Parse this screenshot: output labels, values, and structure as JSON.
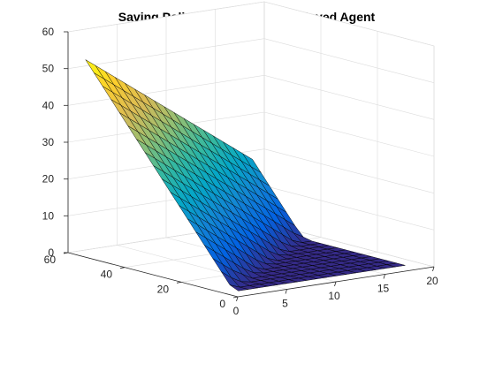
{
  "chart_data": {
    "type": "surface",
    "title": "Saving Policy Function for Employed Agent",
    "xlabel": "",
    "ylabel": "",
    "zlabel": "",
    "xlim": [
      0,
      20
    ],
    "ylim": [
      0,
      60
    ],
    "zlim": [
      0,
      60
    ],
    "x_ticks": [
      "0",
      "5",
      "10",
      "15",
      "20"
    ],
    "y_ticks": [
      "0",
      "20",
      "40",
      "60"
    ],
    "z_ticks": [
      "0",
      "10",
      "20",
      "30",
      "40",
      "50",
      "60"
    ],
    "grid": true,
    "colormap": "parula",
    "colormap_stops": [
      "#352a87",
      "#0363e1",
      "#1485d4",
      "#06a7c6",
      "#38b99e",
      "#92bf73",
      "#d9ba56",
      "#fcce2e",
      "#f9fb0e"
    ],
    "x_grid": [
      1.5,
      2.5,
      3.5,
      4.5,
      5.5,
      6.5,
      7.5,
      8.5,
      9.5,
      10.5,
      11.5,
      12.5,
      13.5,
      14.5,
      15.5,
      16.5,
      17.5,
      18.5
    ],
    "y_grid": [
      5,
      8,
      11,
      14,
      17,
      20,
      23,
      26,
      29,
      32,
      35,
      38,
      41,
      44,
      47,
      50,
      53,
      56,
      59
    ],
    "saving_z": [
      [
        0.0,
        0.0,
        0.0,
        0.0,
        0.0,
        0.0,
        0.0,
        0.0,
        0.0,
        0.0,
        0.0,
        0.0,
        0.0,
        0.0,
        0.0,
        0.0,
        0.0,
        0.0
      ],
      [
        1.0,
        0.0,
        0.0,
        0.0,
        0.0,
        0.0,
        0.0,
        0.0,
        0.0,
        0.0,
        0.0,
        0.0,
        0.0,
        0.0,
        0.0,
        0.0,
        0.0,
        0.0
      ],
      [
        4.0,
        2.0,
        0.5,
        0.0,
        0.0,
        0.0,
        0.0,
        0.0,
        0.0,
        0.0,
        0.0,
        0.0,
        0.0,
        0.0,
        0.0,
        0.0,
        0.0,
        0.0
      ],
      [
        7.0,
        5.0,
        3.0,
        1.5,
        0.0,
        0.0,
        0.0,
        0.0,
        0.0,
        0.0,
        0.0,
        0.0,
        0.0,
        0.0,
        0.0,
        0.0,
        0.0,
        0.0
      ],
      [
        10.0,
        8.0,
        6.0,
        4.0,
        2.0,
        0.5,
        0.0,
        0.0,
        0.0,
        0.0,
        0.0,
        0.0,
        0.0,
        0.0,
        0.0,
        0.0,
        0.0,
        0.0
      ],
      [
        13.0,
        11.0,
        9.0,
        7.0,
        5.0,
        3.0,
        1.0,
        0.0,
        0.0,
        0.0,
        0.0,
        0.0,
        0.0,
        0.0,
        0.0,
        0.0,
        0.0,
        0.0
      ],
      [
        16.0,
        14.0,
        12.0,
        10.0,
        8.0,
        6.0,
        4.0,
        2.0,
        0.5,
        0.0,
        0.0,
        0.0,
        0.0,
        0.0,
        0.0,
        0.0,
        0.0,
        0.0
      ],
      [
        19.0,
        17.0,
        15.0,
        13.0,
        11.0,
        9.0,
        7.0,
        5.0,
        3.0,
        1.0,
        0.0,
        0.0,
        0.0,
        0.0,
        0.0,
        0.0,
        0.0,
        0.0
      ],
      [
        22.0,
        20.0,
        18.0,
        16.0,
        14.0,
        12.0,
        10.0,
        8.0,
        6.0,
        4.0,
        2.0,
        0.5,
        0.0,
        0.0,
        0.0,
        0.0,
        0.0,
        0.0
      ],
      [
        25.0,
        23.0,
        21.0,
        19.0,
        17.0,
        15.0,
        13.0,
        11.0,
        9.0,
        7.0,
        5.0,
        3.0,
        1.0,
        0.0,
        0.0,
        0.0,
        0.0,
        0.0
      ],
      [
        28.0,
        26.0,
        24.0,
        22.0,
        20.0,
        18.0,
        16.0,
        14.0,
        12.0,
        10.0,
        8.0,
        6.0,
        4.0,
        2.0,
        0.5,
        0.0,
        0.0,
        0.0
      ],
      [
        31.0,
        29.0,
        27.0,
        25.0,
        23.0,
        21.0,
        19.0,
        17.0,
        15.0,
        13.0,
        11.0,
        9.0,
        7.0,
        5.0,
        3.0,
        1.0,
        0.0,
        0.0
      ],
      [
        34.0,
        32.0,
        30.0,
        28.0,
        26.0,
        24.0,
        22.0,
        20.0,
        18.0,
        16.0,
        14.0,
        12.0,
        10.0,
        8.0,
        6.0,
        4.0,
        2.0,
        0.5
      ],
      [
        37.0,
        35.0,
        33.0,
        31.0,
        29.0,
        27.0,
        25.0,
        23.0,
        21.0,
        19.0,
        17.0,
        15.0,
        13.0,
        11.0,
        9.0,
        7.0,
        5.0,
        3.0
      ],
      [
        40.0,
        38.0,
        36.0,
        34.0,
        32.0,
        30.0,
        28.0,
        26.0,
        24.0,
        22.0,
        20.0,
        18.0,
        16.0,
        14.0,
        12.0,
        10.0,
        8.0,
        6.0
      ],
      [
        43.0,
        41.0,
        39.0,
        37.0,
        35.0,
        33.0,
        31.0,
        29.0,
        27.0,
        25.0,
        23.0,
        21.0,
        19.0,
        17.0,
        15.0,
        13.0,
        11.0,
        9.0
      ],
      [
        46.0,
        44.0,
        42.0,
        40.0,
        38.0,
        36.0,
        34.0,
        32.0,
        30.0,
        28.0,
        26.0,
        24.0,
        22.0,
        20.0,
        18.0,
        16.0,
        14.0,
        12.0
      ],
      [
        49.0,
        47.0,
        45.0,
        43.0,
        41.0,
        39.0,
        37.0,
        35.0,
        33.0,
        31.0,
        29.0,
        27.0,
        25.0,
        23.0,
        21.0,
        19.0,
        17.0,
        15.0
      ],
      [
        52.0,
        50.0,
        48.0,
        46.0,
        44.0,
        42.0,
        40.0,
        38.0,
        36.0,
        34.0,
        32.0,
        30.0,
        28.0,
        26.0,
        24.0,
        22.0,
        20.0,
        18.0
      ]
    ]
  }
}
